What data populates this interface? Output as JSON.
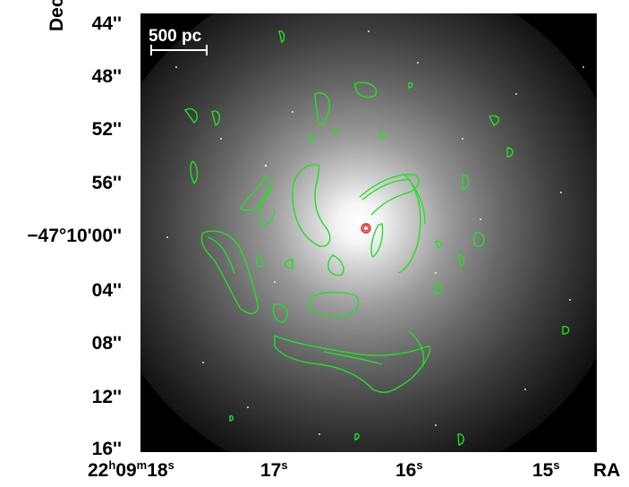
{
  "figure": {
    "y_axis_title": "Dec",
    "x_axis_title": "RA",
    "scale_bar_label": "500 pc",
    "dec_ticks": [
      "44''",
      "48''",
      "52''",
      "56''",
      "−47°10'00''",
      "04''",
      "08''",
      "12''",
      "16''"
    ],
    "ra_ticks": [
      {
        "h": "22",
        "hs": "h",
        "m": "09",
        "ms": "m",
        "s": "18",
        "ss": "s"
      },
      {
        "s": "17",
        "ss": "s"
      },
      {
        "s": "16",
        "ss": "s"
      },
      {
        "s": "15",
        "ss": "s"
      }
    ],
    "colors": {
      "background": "#000000",
      "galaxy_core": "#ffffff",
      "contours_primary": "#22e022",
      "contour_nucleus": "#e02020",
      "labels": "#000000",
      "scale_bar": "#ffffff"
    }
  }
}
